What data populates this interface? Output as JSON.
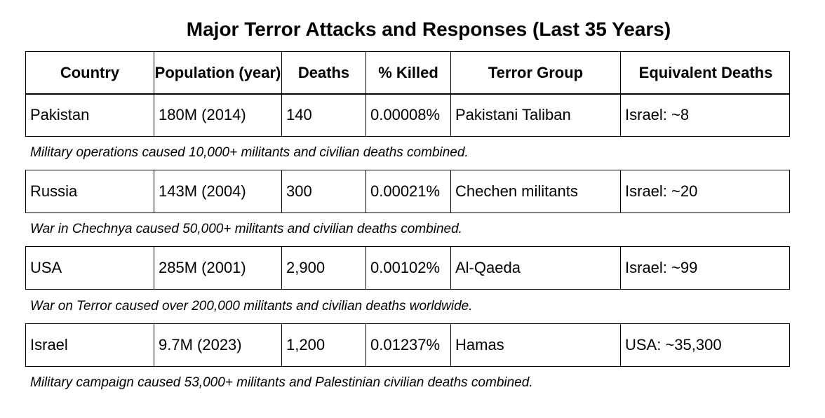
{
  "title": "Major Terror Attacks and Responses (Last 35 Years)",
  "headers": [
    "Country",
    "Population (year)",
    "Deaths",
    "% Killed",
    "Terror Group",
    "Equivalent Deaths"
  ],
  "rows": [
    {
      "country": "Pakistan",
      "population": "180M (2014)",
      "deaths": "140",
      "pct_killed": "0.00008%",
      "group": "Pakistani Taliban",
      "equivalent": "Israel: ~8",
      "note": "Military operations caused 10,000+ militants and civilian deaths combined."
    },
    {
      "country": "Russia",
      "population": "143M (2004)",
      "deaths": "300",
      "pct_killed": "0.00021%",
      "group": "Chechen militants",
      "equivalent": "Israel: ~20",
      "note": "War in Chechnya caused 50,000+ militants and civilian deaths combined."
    },
    {
      "country": "USA",
      "population": "285M (2001)",
      "deaths": "2,900",
      "pct_killed": "0.00102%",
      "group": "Al-Qaeda",
      "equivalent": "Israel: ~99",
      "note": "War on Terror caused over 200,000 militants and civilian deaths worldwide."
    },
    {
      "country": "Israel",
      "population": "9.7M (2023)",
      "deaths": "1,200",
      "pct_killed": "0.01237%",
      "group": "Hamas",
      "equivalent": "USA: ~35,300",
      "note": "Military campaign caused 53,000+ militants and Palestinian civilian deaths combined."
    }
  ]
}
